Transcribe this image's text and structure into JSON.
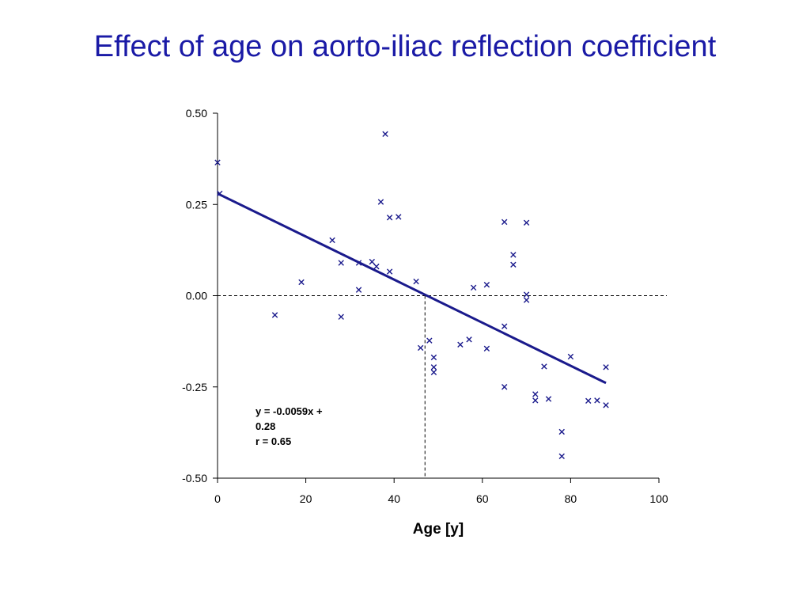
{
  "title": "Effect of age on aorto-iliac reflection coefficient",
  "chart_data": {
    "type": "scatter",
    "title": "Effect of age on aorto-iliac reflection coefficient",
    "xlabel": "Age [y]",
    "ylabel": "",
    "xlim": [
      0,
      100
    ],
    "ylim": [
      -0.5,
      0.5
    ],
    "x_ticks": [
      "0",
      "20",
      "40",
      "60",
      "80",
      "100"
    ],
    "y_ticks": [
      "0.50",
      "0.25",
      "0.00",
      "-0.25",
      "-0.50"
    ],
    "marker": "x",
    "colors": {
      "points": "#1a1a8c",
      "regression_line": "#1a1a8c",
      "reference_lines": "#000000",
      "title": "#1a1aa6"
    },
    "points": [
      {
        "x": 0,
        "y": 0.365
      },
      {
        "x": 0.5,
        "y": 0.28
      },
      {
        "x": 13,
        "y": -0.053
      },
      {
        "x": 19,
        "y": 0.037
      },
      {
        "x": 26,
        "y": 0.152
      },
      {
        "x": 28,
        "y": 0.09
      },
      {
        "x": 28,
        "y": -0.058
      },
      {
        "x": 32,
        "y": 0.09
      },
      {
        "x": 32,
        "y": 0.016
      },
      {
        "x": 35,
        "y": 0.093
      },
      {
        "x": 36,
        "y": 0.08
      },
      {
        "x": 37,
        "y": 0.257
      },
      {
        "x": 38,
        "y": 0.443
      },
      {
        "x": 39,
        "y": 0.214
      },
      {
        "x": 39,
        "y": 0.066
      },
      {
        "x": 41,
        "y": 0.216
      },
      {
        "x": 45,
        "y": 0.039
      },
      {
        "x": 46,
        "y": -0.143
      },
      {
        "x": 48,
        "y": -0.123
      },
      {
        "x": 49,
        "y": -0.169
      },
      {
        "x": 49,
        "y": -0.196
      },
      {
        "x": 49,
        "y": -0.21
      },
      {
        "x": 55,
        "y": -0.134
      },
      {
        "x": 57,
        "y": -0.12
      },
      {
        "x": 58,
        "y": 0.022
      },
      {
        "x": 61,
        "y": 0.03
      },
      {
        "x": 61,
        "y": -0.145
      },
      {
        "x": 65,
        "y": 0.202
      },
      {
        "x": 65,
        "y": -0.084
      },
      {
        "x": 65,
        "y": -0.25
      },
      {
        "x": 67,
        "y": 0.112
      },
      {
        "x": 67,
        "y": 0.085
      },
      {
        "x": 70,
        "y": 0.2
      },
      {
        "x": 70,
        "y": 0.003
      },
      {
        "x": 70,
        "y": -0.012
      },
      {
        "x": 72,
        "y": -0.27
      },
      {
        "x": 72,
        "y": -0.287
      },
      {
        "x": 74,
        "y": -0.194
      },
      {
        "x": 75,
        "y": -0.283
      },
      {
        "x": 78,
        "y": -0.373
      },
      {
        "x": 78,
        "y": -0.44
      },
      {
        "x": 80,
        "y": -0.167
      },
      {
        "x": 84,
        "y": -0.288
      },
      {
        "x": 86,
        "y": -0.287
      },
      {
        "x": 88,
        "y": -0.196
      },
      {
        "x": 88,
        "y": -0.3
      }
    ],
    "regression": {
      "slope": -0.0059,
      "intercept": 0.28,
      "x_start": 0,
      "x_end": 88
    },
    "reference_lines": {
      "y": 0,
      "x": 47
    },
    "annotation": {
      "lines": [
        "y = -0.0059x +",
        "0.28",
        "r = 0.65"
      ]
    }
  }
}
